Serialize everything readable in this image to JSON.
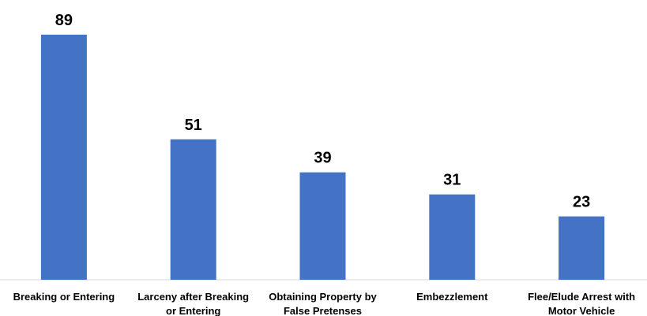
{
  "chart_data": {
    "type": "bar",
    "title": "",
    "xlabel": "",
    "ylabel": "",
    "categories": [
      [
        "Breaking or Entering"
      ],
      [
        "Larceny after Breaking",
        "or Entering"
      ],
      [
        "Obtaining Property by",
        "False Pretenses"
      ],
      [
        "Embezzlement"
      ],
      [
        "Flee/Elude Arrest with",
        "Motor Vehicle"
      ]
    ],
    "values": [
      89,
      51,
      39,
      31,
      23
    ],
    "ylim": [
      0,
      89
    ],
    "grid": false,
    "legend": "none",
    "bar_color": "#4472c4"
  }
}
